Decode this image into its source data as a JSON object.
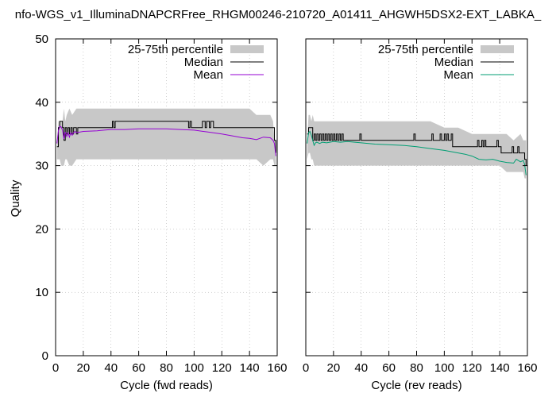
{
  "title": "nfo-WGS_v1_IlluminaDNAPCRFree_RHGM00246-210720_A01411_AHGWH5DSX2-EXT_LABKA_",
  "colors": {
    "band": "#c8c8c8",
    "median": "#000000",
    "mean_fwd": "#9400d3",
    "mean_rev": "#009e73",
    "grid": "#a0a0a0"
  },
  "chart_data": [
    {
      "type": "area",
      "name": "fwd",
      "xlabel": "Cycle (fwd reads)",
      "ylabel": "Quality",
      "xlim": [
        0,
        160
      ],
      "ylim": [
        0,
        50
      ],
      "xticks": [
        0,
        20,
        40,
        60,
        80,
        100,
        120,
        140,
        160
      ],
      "yticks": [
        0,
        10,
        20,
        30,
        40,
        50
      ],
      "grid": true,
      "legend_position": "top-right",
      "legend": [
        "25-75th percentile",
        "Median",
        "Mean"
      ],
      "series": [
        {
          "name": "25-75th percentile",
          "kind": "band",
          "x": [
            1,
            2,
            3,
            4,
            5,
            6,
            7,
            8,
            10,
            12,
            15,
            20,
            25,
            30,
            40,
            50,
            60,
            70,
            80,
            90,
            100,
            110,
            120,
            130,
            140,
            145,
            150,
            155,
            157,
            158,
            159
          ],
          "low": [
            31,
            31,
            31,
            30,
            30,
            30,
            31,
            31,
            30,
            30,
            31,
            31,
            31,
            31,
            31,
            31,
            31,
            31,
            31,
            31,
            31,
            31,
            31,
            31,
            31,
            31,
            30,
            31,
            31,
            30,
            30
          ],
          "high": [
            33,
            37,
            37,
            37,
            37,
            39,
            37,
            38,
            39,
            38,
            39,
            39,
            39,
            39,
            39,
            39,
            39,
            39,
            39,
            39,
            39,
            39,
            39,
            39,
            39,
            38,
            38,
            38,
            37,
            34,
            34
          ]
        },
        {
          "name": "Median",
          "kind": "line",
          "x": [
            1,
            2,
            3,
            4,
            5,
            6,
            7,
            8,
            9,
            10,
            11,
            12,
            13,
            14,
            15,
            16,
            17,
            18,
            40,
            41,
            42,
            43,
            44,
            45,
            95,
            96,
            97,
            98,
            99,
            100,
            105,
            106,
            107,
            108,
            109,
            110,
            111,
            112,
            113,
            114,
            115,
            157,
            158,
            159
          ],
          "y": [
            33,
            36,
            37,
            37,
            36,
            34,
            36,
            35,
            36,
            35,
            36,
            35,
            36,
            36,
            35,
            36,
            36,
            36,
            36,
            37,
            36,
            37,
            37,
            37,
            37,
            36,
            37,
            36,
            36,
            36,
            36,
            37,
            37,
            36,
            37,
            37,
            36,
            37,
            37,
            36,
            36,
            36,
            34,
            32
          ]
        },
        {
          "name": "Mean",
          "kind": "line",
          "x": [
            1,
            2,
            3,
            4,
            5,
            6,
            7,
            8,
            9,
            10,
            11,
            12,
            13,
            14,
            15,
            20,
            30,
            40,
            50,
            60,
            70,
            80,
            90,
            100,
            110,
            120,
            130,
            135,
            140,
            145,
            150,
            155,
            157,
            158,
            159
          ],
          "y": [
            33.5,
            35.5,
            36.2,
            36.1,
            35.6,
            34.2,
            35.3,
            34.6,
            35.2,
            34.5,
            35.2,
            34.8,
            35.2,
            35.4,
            35.2,
            35.4,
            35.5,
            35.7,
            35.7,
            35.8,
            35.8,
            35.8,
            35.7,
            35.6,
            35.3,
            35.0,
            34.6,
            34.4,
            34.3,
            34.1,
            34.5,
            34.4,
            34.0,
            33.5,
            31.5
          ]
        }
      ]
    },
    {
      "type": "area",
      "name": "rev",
      "xlabel": "Cycle (rev reads)",
      "ylabel": "",
      "xlim": [
        0,
        160
      ],
      "ylim": [
        0,
        50
      ],
      "xticks": [
        0,
        20,
        40,
        60,
        80,
        100,
        120,
        140,
        160
      ],
      "yticks": [
        0,
        10,
        20,
        30,
        40,
        50
      ],
      "grid": true,
      "legend_position": "top-right",
      "legend": [
        "25-75th percentile",
        "Median",
        "Mean"
      ],
      "series": [
        {
          "name": "25-75th percentile",
          "kind": "band",
          "x": [
            1,
            2,
            3,
            4,
            5,
            6,
            8,
            10,
            15,
            20,
            30,
            40,
            50,
            60,
            70,
            80,
            90,
            100,
            110,
            120,
            130,
            140,
            145,
            150,
            155,
            157,
            158,
            159
          ],
          "low": [
            31,
            32,
            32,
            31,
            31,
            30,
            30,
            30,
            30,
            30,
            30,
            30,
            30,
            30,
            30,
            30,
            30,
            30,
            30,
            30,
            30,
            30,
            29,
            29,
            29,
            29,
            28,
            28
          ],
          "high": [
            34,
            38,
            38,
            37,
            38,
            37,
            37,
            37,
            37,
            37,
            37,
            37,
            37,
            37,
            37,
            37,
            37,
            36,
            36,
            35,
            35,
            35,
            35,
            34,
            35,
            34,
            34,
            34
          ]
        },
        {
          "name": "Median",
          "kind": "line",
          "x": [
            1,
            2,
            3,
            4,
            5,
            6,
            7,
            8,
            9,
            10,
            11,
            12,
            13,
            14,
            15,
            16,
            17,
            18,
            19,
            20,
            21,
            22,
            23,
            24,
            25,
            26,
            27,
            38,
            39,
            40,
            41,
            77,
            78,
            79,
            80,
            81,
            90,
            91,
            92,
            93,
            96,
            97,
            98,
            99,
            100,
            101,
            102,
            103,
            104,
            105,
            106,
            123,
            124,
            125,
            126,
            127,
            128,
            129,
            130,
            131,
            132,
            137,
            138,
            139,
            140,
            141,
            148,
            149,
            150,
            151,
            152,
            153,
            154,
            155,
            156,
            157,
            158,
            159
          ],
          "y": [
            35,
            36,
            36,
            36,
            34,
            35,
            34,
            35,
            34,
            35,
            34,
            35,
            34,
            35,
            34,
            35,
            34,
            35,
            34,
            35,
            34,
            35,
            34,
            35,
            34,
            35,
            34,
            34,
            35,
            34,
            34,
            34,
            35,
            34,
            34,
            34,
            34,
            35,
            34,
            34,
            34,
            35,
            34,
            34,
            35,
            34,
            35,
            34,
            34,
            35,
            33,
            33,
            34,
            33,
            33,
            34,
            33,
            34,
            33,
            33,
            33,
            33,
            34,
            33,
            33,
            32,
            32,
            33,
            32,
            32,
            32,
            33,
            32,
            32,
            32,
            32,
            31,
            30
          ]
        },
        {
          "name": "Mean",
          "kind": "line",
          "x": [
            1,
            2,
            3,
            4,
            5,
            6,
            7,
            8,
            10,
            12,
            15,
            20,
            25,
            30,
            40,
            50,
            60,
            70,
            80,
            90,
            100,
            110,
            115,
            120,
            125,
            130,
            135,
            140,
            145,
            150,
            152,
            155,
            157,
            158,
            159
          ],
          "y": [
            33.5,
            35.2,
            35.4,
            34.8,
            34.0,
            33.2,
            33.6,
            33.7,
            33.5,
            33.7,
            33.6,
            33.8,
            33.7,
            33.8,
            33.6,
            33.4,
            33.3,
            33.2,
            33.0,
            32.7,
            32.4,
            32.0,
            31.8,
            31.5,
            31.0,
            30.9,
            31.0,
            30.7,
            30.5,
            30.4,
            31.0,
            30.6,
            30.8,
            30.2,
            28.5
          ]
        }
      ]
    }
  ]
}
